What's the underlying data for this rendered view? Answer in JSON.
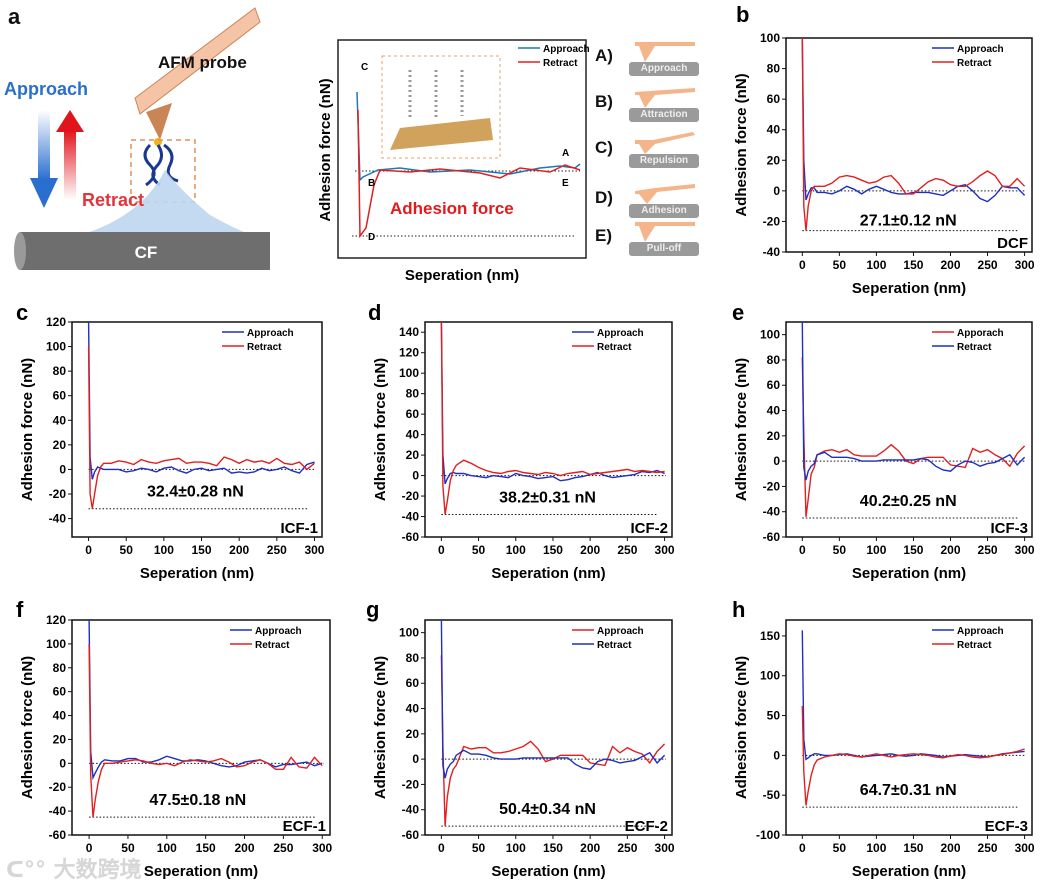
{
  "panel_a": {
    "letter": "a",
    "probe_label": "AFM probe",
    "approach_label": "Approach",
    "retract_label": "Retract",
    "substrate_label": "CF",
    "schematic": {
      "xlabel": "Seperation (nm)",
      "ylabel": "Adhesion force (nN)",
      "legend": [
        "Approach",
        "Retract"
      ],
      "point_labels": [
        "A",
        "B",
        "C",
        "D",
        "E"
      ],
      "annotation": "Adhesion force"
    },
    "steps": [
      {
        "key": "A)",
        "tag": "Approach"
      },
      {
        "key": "B)",
        "tag": "Attraction"
      },
      {
        "key": "C)",
        "tag": "Repulsion"
      },
      {
        "key": "D)",
        "tag": "Adhesion"
      },
      {
        "key": "E)",
        "tag": "Pull-off"
      }
    ]
  },
  "colors": {
    "approach_blue": "#1f2fbf",
    "retract_red": "#e02020",
    "schematic_blue": "#1f77b4",
    "probe": "#f5b58a",
    "accent_red": "#e31a1c"
  },
  "watermark": "大数跨境",
  "chart_data": [
    {
      "id": "b",
      "letter": "b",
      "type": "line",
      "xlabel": "Seperation (nm)",
      "ylabel": "Adhesion force (nN)",
      "xlim": [
        -22,
        310
      ],
      "ylim": [
        -40,
        100
      ],
      "xticks": [
        0,
        50,
        100,
        150,
        200,
        250,
        300
      ],
      "yticks": [
        -40,
        -20,
        0,
        20,
        40,
        60,
        80,
        100
      ],
      "annotation": "27.1±0.12 nN",
      "sample": "DCF",
      "adhesion_level": -26,
      "x": [
        0,
        2,
        5,
        8,
        12,
        16,
        20,
        30,
        40,
        50,
        60,
        70,
        80,
        90,
        100,
        110,
        120,
        130,
        140,
        150,
        160,
        170,
        180,
        190,
        200,
        210,
        220,
        230,
        240,
        250,
        260,
        270,
        280,
        290,
        300
      ],
      "series": [
        {
          "name": "Approach",
          "color": "#1f2fbf",
          "values": [
            100,
            20,
            -6,
            -2,
            2,
            2,
            -1,
            -1,
            -2,
            0,
            3,
            1,
            -2,
            1,
            3,
            1,
            -1,
            -2,
            -2,
            -1,
            -1,
            -1,
            -2,
            -3,
            0,
            3,
            4,
            0,
            -5,
            -7,
            -3,
            3,
            2,
            2,
            -3
          ]
        },
        {
          "name": "Retract",
          "color": "#e02020",
          "values": [
            100,
            -10,
            -26,
            -10,
            0,
            3,
            3,
            3,
            5,
            9,
            10,
            9,
            7,
            5,
            6,
            9,
            10,
            5,
            -2,
            -2,
            2,
            6,
            8,
            7,
            4,
            3,
            3,
            6,
            10,
            13,
            10,
            3,
            3,
            8,
            3
          ]
        }
      ]
    },
    {
      "id": "c",
      "letter": "c",
      "type": "line",
      "xlabel": "Seperation (nm)",
      "ylabel": "Adhesion force (nN)",
      "xlim": [
        -22,
        310
      ],
      "ylim": [
        -55,
        120
      ],
      "xticks": [
        0,
        50,
        100,
        150,
        200,
        250,
        300
      ],
      "yticks": [
        -40,
        -20,
        0,
        20,
        40,
        60,
        80,
        100,
        120
      ],
      "annotation": "32.4±0.28 nN",
      "sample": "ICF-1",
      "adhesion_level": -32,
      "x": [
        0,
        2,
        5,
        8,
        12,
        16,
        20,
        30,
        40,
        50,
        60,
        70,
        80,
        90,
        100,
        110,
        120,
        130,
        140,
        150,
        160,
        170,
        180,
        190,
        200,
        210,
        220,
        230,
        240,
        250,
        260,
        270,
        280,
        290,
        300
      ],
      "series": [
        {
          "name": "Approach",
          "color": "#1f2fbf",
          "values": [
            120,
            10,
            -8,
            -2,
            2,
            1,
            0,
            0,
            0,
            -2,
            -1,
            1,
            0,
            -2,
            1,
            2,
            -1,
            -3,
            0,
            1,
            -1,
            0,
            1,
            -3,
            -2,
            -3,
            -2,
            1,
            -1,
            0,
            2,
            -1,
            -3,
            4,
            6
          ]
        },
        {
          "name": "Retract",
          "color": "#e02020",
          "values": [
            100,
            -20,
            -32,
            -20,
            -5,
            2,
            5,
            5,
            7,
            6,
            4,
            8,
            6,
            5,
            7,
            8,
            9,
            5,
            6,
            6,
            5,
            3,
            10,
            8,
            5,
            8,
            6,
            7,
            5,
            9,
            5,
            4,
            6,
            0,
            5
          ]
        }
      ]
    },
    {
      "id": "d",
      "letter": "d",
      "type": "line",
      "xlabel": "Seperation (nm)",
      "ylabel": "Adhesion force (nN)",
      "xlim": [
        -22,
        310
      ],
      "ylim": [
        -60,
        150
      ],
      "xticks": [
        0,
        50,
        100,
        150,
        200,
        250,
        300
      ],
      "yticks": [
        -60,
        -40,
        -20,
        0,
        20,
        40,
        60,
        80,
        100,
        120,
        140
      ],
      "annotation": "38.2±0.31 nN",
      "sample": "ICF-2",
      "adhesion_level": -38,
      "x": [
        0,
        2,
        5,
        8,
        12,
        16,
        20,
        30,
        40,
        50,
        60,
        70,
        80,
        90,
        100,
        110,
        120,
        130,
        140,
        150,
        160,
        170,
        180,
        190,
        200,
        210,
        220,
        230,
        240,
        250,
        260,
        270,
        280,
        290,
        300
      ],
      "series": [
        {
          "name": "Approach",
          "color": "#1f2fbf",
          "values": [
            150,
            20,
            -8,
            -3,
            2,
            3,
            2,
            2,
            0,
            -1,
            -2,
            0,
            -1,
            -2,
            2,
            0,
            -1,
            -3,
            -2,
            -1,
            -5,
            -4,
            -2,
            -1,
            1,
            3,
            0,
            -2,
            -1,
            0,
            1,
            4,
            3,
            5,
            2
          ]
        },
        {
          "name": "Retract",
          "color": "#e02020",
          "values": [
            150,
            -10,
            -38,
            -25,
            -5,
            5,
            10,
            15,
            12,
            8,
            5,
            3,
            2,
            4,
            5,
            3,
            2,
            1,
            3,
            2,
            0,
            2,
            3,
            4,
            1,
            2,
            3,
            4,
            5,
            6,
            4,
            5,
            4,
            3,
            4
          ]
        }
      ]
    },
    {
      "id": "e",
      "letter": "e",
      "type": "line",
      "xlabel": "Seperation (nm)",
      "ylabel": "Adhesion force (nN)",
      "xlim": [
        -22,
        310
      ],
      "ylim": [
        -60,
        110
      ],
      "xticks": [
        0,
        50,
        100,
        150,
        200,
        250,
        300
      ],
      "yticks": [
        -60,
        -40,
        -20,
        0,
        20,
        40,
        60,
        80,
        100
      ],
      "annotation": "40.2±0.25 nN",
      "sample": "ICF-3",
      "adhesion_level": -45,
      "x": [
        0,
        2,
        5,
        8,
        12,
        16,
        20,
        30,
        40,
        50,
        60,
        70,
        80,
        90,
        100,
        110,
        120,
        130,
        140,
        150,
        160,
        170,
        180,
        190,
        200,
        210,
        220,
        230,
        240,
        250,
        260,
        270,
        280,
        290,
        300
      ],
      "series": [
        {
          "name": "Apporach",
          "color": "#e02020",
          "values": [
            82,
            20,
            -44,
            -30,
            -10,
            -5,
            5,
            8,
            9,
            7,
            9,
            5,
            4,
            4,
            4,
            8,
            13,
            8,
            0,
            -2,
            2,
            3,
            3,
            3,
            -3,
            -4,
            -5,
            10,
            7,
            9,
            5,
            2,
            -4,
            6,
            12
          ]
        },
        {
          "name": "Retract",
          "color": "#1f2fbf",
          "values": [
            110,
            -5,
            -15,
            -8,
            -4,
            -2,
            5,
            7,
            3,
            3,
            3,
            2,
            0,
            0,
            0,
            1,
            1,
            1,
            1,
            1,
            2,
            1,
            -4,
            -7,
            -8,
            -3,
            0,
            -1,
            -4,
            -2,
            -1,
            2,
            5,
            -3,
            3
          ]
        }
      ]
    },
    {
      "id": "f",
      "letter": "f",
      "type": "line",
      "xlabel": "Seperation (nm)",
      "ylabel": "Adhesion force (nN)",
      "xlim": [
        -22,
        310
      ],
      "ylim": [
        -60,
        120
      ],
      "xticks": [
        0,
        50,
        100,
        150,
        200,
        250,
        300
      ],
      "yticks": [
        -60,
        -40,
        -20,
        0,
        20,
        40,
        60,
        80,
        100,
        120
      ],
      "annotation": "47.5±0.18 nN",
      "sample": "ECF-1",
      "adhesion_level": -45,
      "x": [
        0,
        2,
        5,
        8,
        12,
        16,
        20,
        30,
        40,
        50,
        60,
        70,
        80,
        90,
        100,
        110,
        120,
        130,
        140,
        150,
        160,
        170,
        180,
        190,
        200,
        210,
        220,
        230,
        240,
        250,
        260,
        270,
        280,
        290,
        300
      ],
      "series": [
        {
          "name": "Approach",
          "color": "#1f2fbf",
          "values": [
            120,
            10,
            -12,
            -8,
            -3,
            1,
            3,
            2,
            2,
            4,
            4,
            1,
            1,
            3,
            6,
            4,
            2,
            2,
            3,
            2,
            0,
            -2,
            -3,
            -2,
            1,
            2,
            3,
            0,
            -3,
            -1,
            -1,
            0,
            1,
            -2,
            0
          ]
        },
        {
          "name": "Retract",
          "color": "#e02020",
          "values": [
            100,
            -10,
            -45,
            -30,
            -15,
            -5,
            0,
            0,
            1,
            2,
            3,
            2,
            0,
            -1,
            0,
            -2,
            1,
            3,
            2,
            1,
            2,
            4,
            1,
            -3,
            -2,
            1,
            3,
            0,
            -5,
            -5,
            5,
            -3,
            -4,
            5,
            -2
          ]
        }
      ]
    },
    {
      "id": "g",
      "letter": "g",
      "type": "line",
      "xlabel": "Seperation (nm)",
      "ylabel": "Adhesion force (nN)",
      "xlim": [
        -22,
        310
      ],
      "ylim": [
        -60,
        110
      ],
      "xticks": [
        0,
        50,
        100,
        150,
        200,
        250,
        300
      ],
      "yticks": [
        -60,
        -40,
        -20,
        0,
        20,
        40,
        60,
        80,
        100
      ],
      "annotation": "50.4±0.34 nN",
      "sample": "ECF-2",
      "adhesion_level": -53,
      "x": [
        0,
        2,
        5,
        8,
        12,
        16,
        20,
        30,
        40,
        50,
        60,
        70,
        80,
        90,
        100,
        110,
        120,
        130,
        140,
        150,
        160,
        170,
        180,
        190,
        200,
        210,
        220,
        230,
        240,
        250,
        260,
        270,
        280,
        290,
        300
      ],
      "series": [
        {
          "name": "Approach",
          "color": "#e02020",
          "values": [
            82,
            10,
            -53,
            -30,
            -15,
            -8,
            -5,
            10,
            8,
            9,
            9,
            5,
            5,
            6,
            8,
            10,
            14,
            8,
            -2,
            0,
            3,
            3,
            3,
            3,
            -3,
            -4,
            -5,
            10,
            5,
            9,
            6,
            4,
            -3,
            6,
            12
          ]
        },
        {
          "name": "Retract",
          "color": "#1f2fbf",
          "values": [
            110,
            -5,
            -15,
            -8,
            -4,
            -2,
            3,
            7,
            4,
            4,
            3,
            1,
            0,
            0,
            0,
            1,
            1,
            1,
            1,
            1,
            1,
            1,
            -4,
            -7,
            -8,
            -2,
            0,
            -1,
            -3,
            -2,
            -1,
            2,
            5,
            -3,
            3
          ]
        }
      ]
    },
    {
      "id": "h",
      "letter": "h",
      "type": "line",
      "xlabel": "Seperation (nm)",
      "ylabel": "Adhesion force (nN)",
      "xlim": [
        -22,
        310
      ],
      "ylim": [
        -100,
        170
      ],
      "xticks": [
        0,
        50,
        100,
        150,
        200,
        250,
        300
      ],
      "yticks": [
        -100,
        -50,
        0,
        50,
        100,
        150
      ],
      "annotation": "64.7±0.31 nN",
      "sample": "ECF-3",
      "adhesion_level": -65,
      "x": [
        0,
        2,
        5,
        8,
        12,
        16,
        20,
        30,
        40,
        50,
        60,
        70,
        80,
        90,
        100,
        110,
        120,
        130,
        140,
        150,
        160,
        170,
        180,
        190,
        200,
        210,
        220,
        230,
        240,
        250,
        260,
        270,
        280,
        290,
        300
      ],
      "series": [
        {
          "name": "Approach",
          "color": "#1f2fbf",
          "values": [
            157,
            20,
            -5,
            -3,
            0,
            2,
            2,
            0,
            0,
            1,
            2,
            0,
            -2,
            -1,
            0,
            1,
            2,
            0,
            -1,
            0,
            2,
            1,
            0,
            -2,
            -1,
            0,
            1,
            0,
            -1,
            -2,
            0,
            2,
            3,
            4,
            5
          ]
        },
        {
          "name": "Retract",
          "color": "#e02020",
          "values": [
            62,
            -20,
            -63,
            -45,
            -25,
            -12,
            -6,
            -2,
            0,
            2,
            1,
            -1,
            -2,
            0,
            2,
            0,
            -2,
            0,
            1,
            2,
            1,
            0,
            -2,
            -3,
            -1,
            1,
            0,
            -2,
            -3,
            -2,
            0,
            1,
            3,
            5,
            8
          ]
        }
      ]
    }
  ]
}
